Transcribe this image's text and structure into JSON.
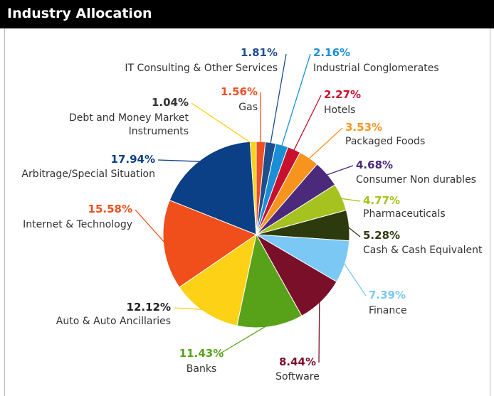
{
  "chart_data": {
    "type": "pie",
    "title": "Industry Allocation",
    "categories": [
      "Gas",
      "IT Consulting & Other Services",
      "Industrial Conglomerates",
      "Hotels",
      "Packaged Foods",
      "Consumer Non durables",
      "Pharmaceuticals",
      "Cash & Cash Equivalent",
      "Finance",
      "Software",
      "Banks",
      "Auto & Auto Ancillaries",
      "Internet & Technology",
      "Arbitrage/Special Situation",
      "Debt and Money Market\nInstruments"
    ],
    "values": [
      1.56,
      1.81,
      2.16,
      2.27,
      3.53,
      4.68,
      4.77,
      5.28,
      7.39,
      8.44,
      11.43,
      12.12,
      15.58,
      17.94,
      1.04
    ],
    "value_labels": [
      "1.56%",
      "1.81%",
      "2.16%",
      "2.27%",
      "3.53%",
      "4.68%",
      "4.77%",
      "5.28%",
      "7.39%",
      "8.44%",
      "11.43%",
      "12.12%",
      "15.58%",
      "17.94%",
      "1.04%"
    ],
    "colors": [
      "#f04e23",
      "#1f4e8c",
      "#1a8fd6",
      "#c8102e",
      "#f7941d",
      "#4b2a7b",
      "#a6c21e",
      "#2d3a0e",
      "#7cc8f5",
      "#7a0f2a",
      "#58a21a",
      "#fcd116",
      "#f04e1b",
      "#0b3f86",
      "#fcd116"
    ],
    "label_colors": [
      "#f04e23",
      "#1f4e8c",
      "#1a8fd6",
      "#c8102e",
      "#f7941d",
      "#4b2a7b",
      "#a6c21e",
      "#2d3a0e",
      "#7cc8f5",
      "#7a0f2a",
      "#58a21a",
      "#222222",
      "#f04e1b",
      "#0b3f86",
      "#333333"
    ]
  }
}
